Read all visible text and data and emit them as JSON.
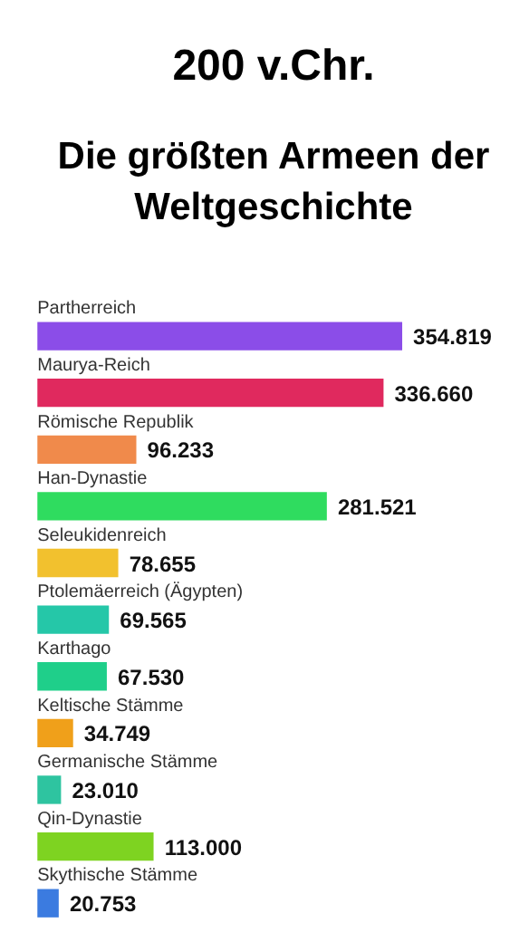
{
  "chart_data": {
    "type": "bar",
    "orientation": "horizontal",
    "title": "200 v.Chr.",
    "subtitle": "Die größten Armeen der Weltgeschichte",
    "categories": [
      "Partherreich",
      "Maurya-Reich",
      "Römische Republik",
      "Han-Dynastie",
      "Seleukidenreich",
      "Ptolemäerreich (Ägypten)",
      "Karthago",
      "Keltische Stämme",
      "Germanische Stämme",
      "Qin-Dynastie",
      "Skythische Stämme"
    ],
    "values": [
      354819,
      336660,
      96233,
      281521,
      78655,
      69565,
      67530,
      34749,
      23010,
      113000,
      20753
    ],
    "value_labels": [
      "354.819",
      "336.660",
      "96.233",
      "281.521",
      "78.655",
      "69.565",
      "67.530",
      "34.749",
      "23.010",
      "113.000",
      "20.753"
    ],
    "colors": [
      "#8b4de8",
      "#e0295e",
      "#f08a4b",
      "#2fdc5f",
      "#f2c12e",
      "#25c7a8",
      "#1fcf8a",
      "#f0a01a",
      "#2ec4a0",
      "#7ed321",
      "#3b7be0"
    ]
  }
}
